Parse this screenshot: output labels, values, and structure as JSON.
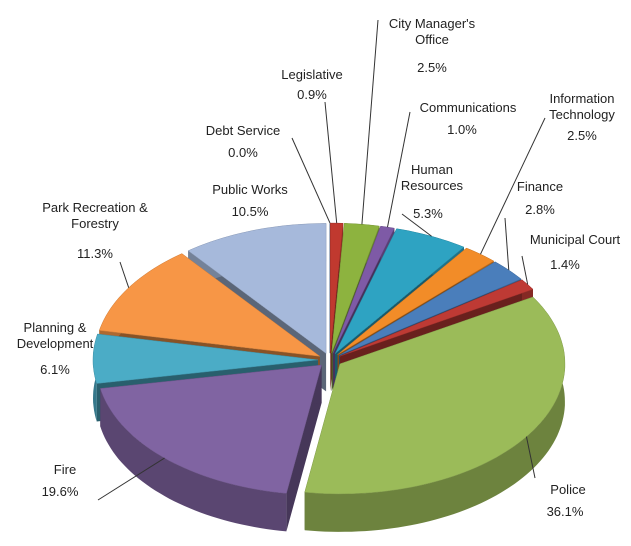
{
  "chart_data": {
    "type": "pie3d",
    "categories": [
      "Legislative",
      "City Manager's Office",
      "Communications",
      "Human Resources",
      "Information Technology",
      "Finance",
      "Municipal Court",
      "Police",
      "Fire",
      "Planning & Development",
      "Park Recreation & Forestry",
      "Public Works",
      "Debt Service"
    ],
    "values": [
      0.9,
      2.5,
      1.0,
      5.3,
      2.5,
      2.8,
      1.4,
      36.1,
      19.6,
      6.1,
      11.3,
      10.5,
      0.0
    ],
    "value_labels": [
      "0.9%",
      "2.5%",
      "1.0%",
      "5.3%",
      "2.5%",
      "2.8%",
      "1.4%",
      "36.1%",
      "19.6%",
      "6.1%",
      "11.3%",
      "10.5%",
      "0.0%"
    ],
    "colors": [
      "#c0392f",
      "#8db33f",
      "#7e5aa6",
      "#2ea3c2",
      "#f28c28",
      "#4a7ebb",
      "#be3a34",
      "#9bbb59",
      "#8064a2",
      "#4bacc6",
      "#f79646",
      "#a6b9db",
      "#1f497d"
    ]
  }
}
